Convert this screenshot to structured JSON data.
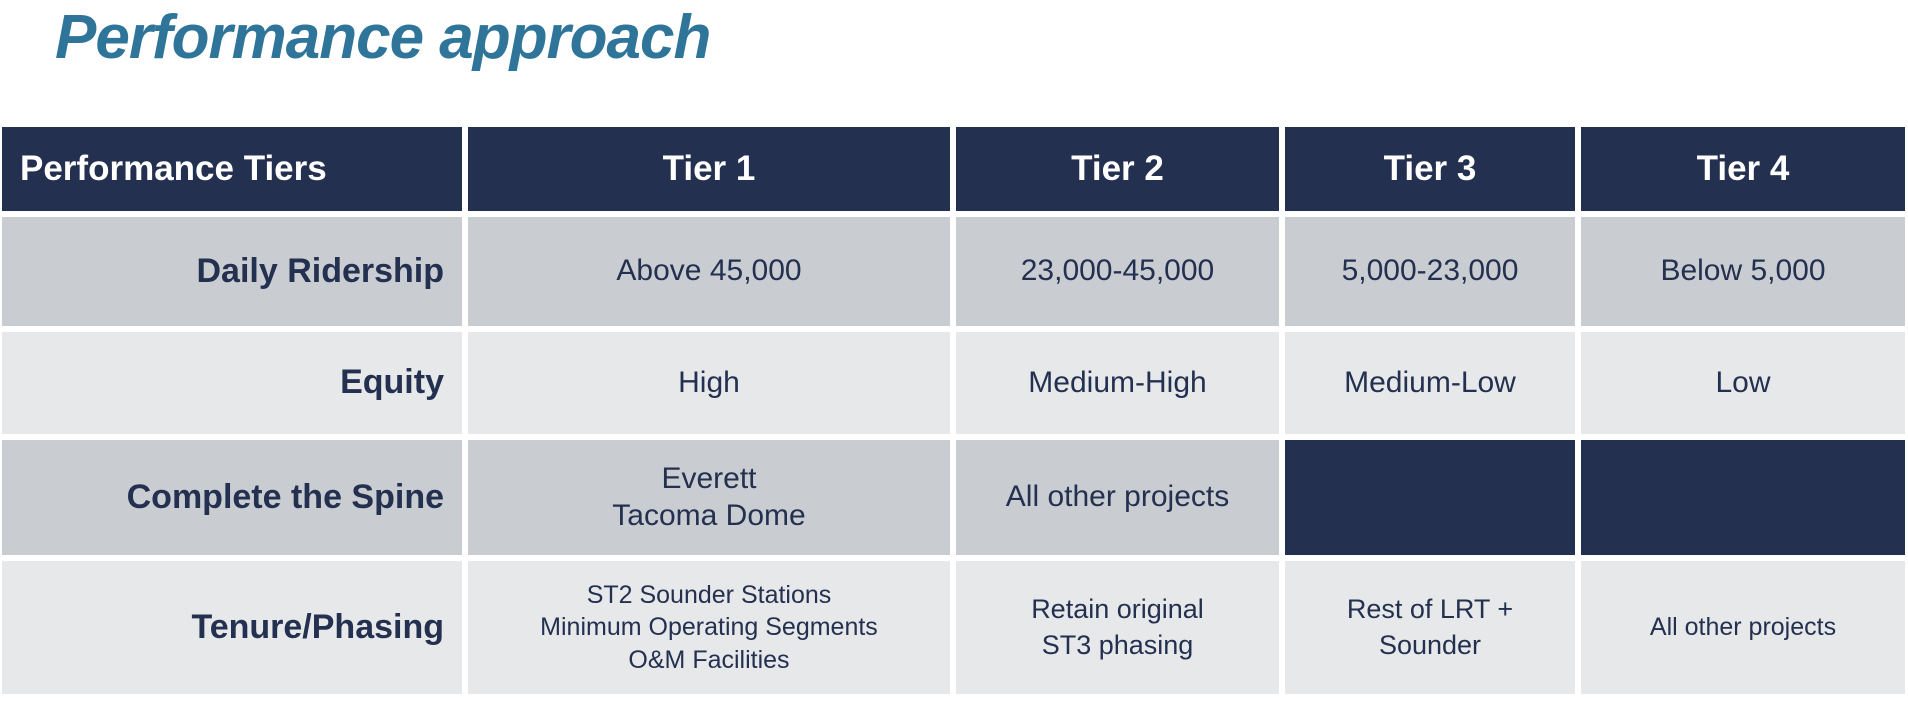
{
  "title": "Performance approach",
  "colors": {
    "title": "#2F7499",
    "navy": "#24304F",
    "header_text": "#FFFFFF",
    "body_text": "#24304F",
    "row_gray": "#C9CDD2",
    "row_light": "#E7E8EA"
  },
  "table": {
    "header": [
      "Performance Tiers",
      "Tier 1",
      "Tier 2",
      "Tier 3",
      "Tier 4"
    ],
    "rows": [
      {
        "label": "Daily Ridership",
        "cells": [
          "Above 45,000",
          "23,000-45,000",
          "5,000-23,000",
          "Below 5,000"
        ]
      },
      {
        "label": "Equity",
        "cells": [
          "High",
          "Medium-High",
          "Medium-Low",
          "Low"
        ]
      },
      {
        "label": "Complete the Spine",
        "cells": [
          "Everett\nTacoma Dome",
          "All other projects",
          "",
          ""
        ]
      },
      {
        "label": "Tenure/Phasing",
        "cells": [
          "ST2 Sounder Stations\nMinimum Operating Segments\nO&M Facilities",
          "Retain original\nST3 phasing",
          "Rest of LRT +\nSounder",
          "All other projects"
        ]
      }
    ]
  }
}
